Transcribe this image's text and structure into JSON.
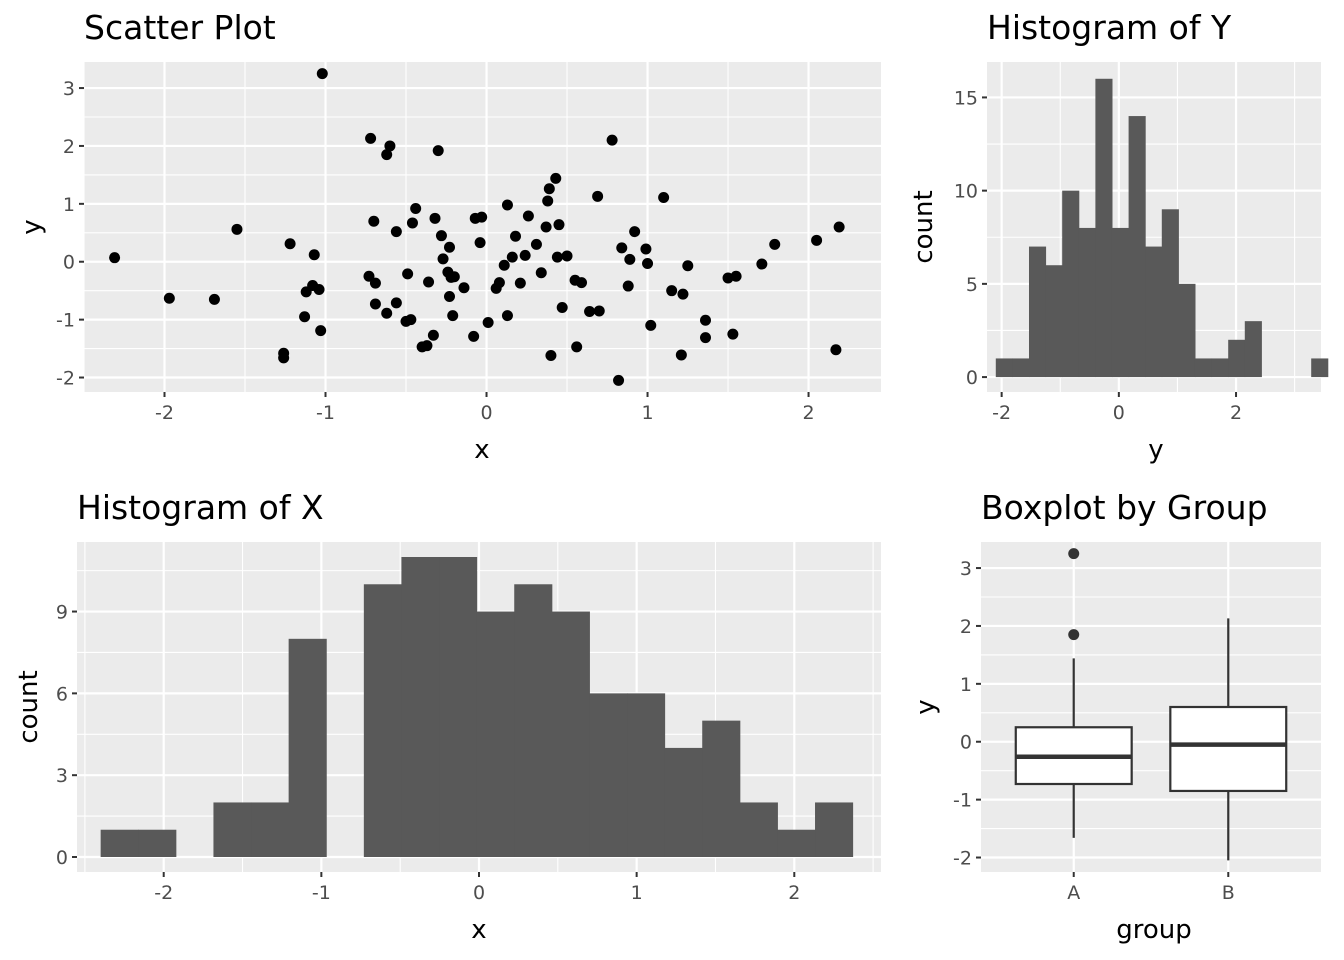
{
  "chart_data": [
    {
      "id": "scatter",
      "type": "scatter",
      "title": "Scatter Plot",
      "xlabel": "x",
      "ylabel": "y",
      "xlim": [
        -2.5,
        2.45
      ],
      "ylim": [
        -2.25,
        3.45
      ],
      "xticks": [
        -2,
        -1,
        0,
        1,
        2
      ],
      "yticks": [
        -2,
        -1,
        0,
        1,
        2,
        3
      ],
      "xticklabels": [
        "-2",
        "-1",
        "0",
        "1",
        "2"
      ],
      "yticklabels": [
        "-2",
        "-1",
        "0",
        "1",
        "2",
        "3"
      ],
      "grid": true,
      "point_color": "#000000",
      "points": [
        [
          -2.31,
          0.07
        ],
        [
          -1.97,
          -0.63
        ],
        [
          -1.69,
          -0.65
        ],
        [
          -1.55,
          0.56
        ],
        [
          -1.26,
          -1.58
        ],
        [
          -1.26,
          -1.66
        ],
        [
          -1.22,
          0.31
        ],
        [
          -1.13,
          -0.95
        ],
        [
          -1.12,
          -0.52
        ],
        [
          -1.08,
          -0.41
        ],
        [
          -1.07,
          0.12
        ],
        [
          -1.04,
          -0.48
        ],
        [
          -1.03,
          -1.19
        ],
        [
          -1.02,
          3.25
        ],
        [
          -0.73,
          -0.25
        ],
        [
          -0.72,
          2.13
        ],
        [
          -0.7,
          0.7
        ],
        [
          -0.69,
          -0.37
        ],
        [
          -0.69,
          -0.73
        ],
        [
          -0.62,
          1.85
        ],
        [
          -0.62,
          -0.89
        ],
        [
          -0.6,
          2.0
        ],
        [
          -0.56,
          0.52
        ],
        [
          -0.56,
          -0.71
        ],
        [
          -0.5,
          -1.03
        ],
        [
          -0.49,
          -0.21
        ],
        [
          -0.47,
          -1.0
        ],
        [
          -0.46,
          0.67
        ],
        [
          -0.44,
          0.92
        ],
        [
          -0.4,
          -1.47
        ],
        [
          -0.37,
          -1.45
        ],
        [
          -0.36,
          -0.35
        ],
        [
          -0.33,
          -1.27
        ],
        [
          -0.32,
          0.75
        ],
        [
          -0.3,
          1.92
        ],
        [
          -0.28,
          0.45
        ],
        [
          -0.27,
          0.05
        ],
        [
          -0.24,
          -0.18
        ],
        [
          -0.23,
          -0.6
        ],
        [
          -0.23,
          0.25
        ],
        [
          -0.22,
          -0.27
        ],
        [
          -0.21,
          -0.93
        ],
        [
          -0.2,
          -0.26
        ],
        [
          -0.14,
          -0.45
        ],
        [
          -0.08,
          -1.29
        ],
        [
          -0.07,
          0.75
        ],
        [
          -0.04,
          0.33
        ],
        [
          -0.03,
          0.77
        ],
        [
          0.01,
          -1.05
        ],
        [
          0.06,
          -0.46
        ],
        [
          0.08,
          -0.36
        ],
        [
          0.11,
          -0.06
        ],
        [
          0.13,
          0.98
        ],
        [
          0.13,
          -0.93
        ],
        [
          0.16,
          0.08
        ],
        [
          0.18,
          0.44
        ],
        [
          0.21,
          -0.37
        ],
        [
          0.24,
          0.11
        ],
        [
          0.26,
          0.79
        ],
        [
          0.31,
          0.3
        ],
        [
          0.34,
          -0.19
        ],
        [
          0.37,
          0.6
        ],
        [
          0.38,
          1.05
        ],
        [
          0.39,
          1.26
        ],
        [
          0.4,
          -1.62
        ],
        [
          0.43,
          1.44
        ],
        [
          0.44,
          0.08
        ],
        [
          0.45,
          0.64
        ],
        [
          0.47,
          -0.79
        ],
        [
          0.5,
          0.1
        ],
        [
          0.55,
          -0.32
        ],
        [
          0.56,
          -1.47
        ],
        [
          0.59,
          -0.36
        ],
        [
          0.64,
          -0.86
        ],
        [
          0.69,
          1.13
        ],
        [
          0.7,
          -0.85
        ],
        [
          0.78,
          2.1
        ],
        [
          0.82,
          -2.05
        ],
        [
          0.84,
          0.24
        ],
        [
          0.88,
          -0.42
        ],
        [
          0.89,
          0.04
        ],
        [
          0.92,
          0.52
        ],
        [
          0.99,
          0.22
        ],
        [
          1.0,
          -0.03
        ],
        [
          1.02,
          -1.1
        ],
        [
          1.1,
          1.11
        ],
        [
          1.15,
          -0.5
        ],
        [
          1.21,
          -1.61
        ],
        [
          1.22,
          -0.56
        ],
        [
          1.25,
          -0.07
        ],
        [
          1.36,
          -1.01
        ],
        [
          1.36,
          -1.31
        ],
        [
          1.5,
          -0.28
        ],
        [
          1.53,
          -1.25
        ],
        [
          1.55,
          -0.25
        ],
        [
          1.71,
          -0.04
        ],
        [
          1.79,
          0.3
        ],
        [
          2.05,
          0.37
        ],
        [
          2.17,
          -1.52
        ],
        [
          2.19,
          0.6
        ]
      ]
    },
    {
      "id": "hist-y",
      "type": "bar",
      "title": "Histogram of Y",
      "xlabel": "y",
      "ylabel": "count",
      "xlim": [
        -2.25,
        3.45
      ],
      "ylim": [
        -0.8,
        16.9
      ],
      "xticks": [
        -2,
        0,
        2
      ],
      "yticks": [
        0,
        5,
        10,
        15
      ],
      "xticklabels": [
        "-2",
        "0",
        "2"
      ],
      "yticklabels": [
        "0",
        "5",
        "10",
        "15"
      ],
      "grid": true,
      "bar_color": "#595959",
      "bin_start": -2.1,
      "bin_width": 0.2833,
      "counts": [
        1,
        1,
        7,
        6,
        10,
        8,
        16,
        8,
        14,
        7,
        9,
        5,
        1,
        1,
        2,
        3,
        0,
        0,
        0,
        1
      ]
    },
    {
      "id": "hist-x",
      "type": "bar",
      "title": "Histogram of X",
      "xlabel": "x",
      "ylabel": "count",
      "xlim": [
        -2.55,
        2.55
      ],
      "ylim": [
        -0.55,
        11.55
      ],
      "xticks": [
        -2,
        -1,
        0,
        1,
        2
      ],
      "yticks": [
        0,
        3,
        6,
        9
      ],
      "xticklabels": [
        "-2",
        "-1",
        "0",
        "1",
        "2"
      ],
      "yticklabels": [
        "0",
        "3",
        "6",
        "9"
      ],
      "grid": true,
      "bar_color": "#595959",
      "bin_start": -2.4,
      "bin_width": 0.2385,
      "counts": [
        1,
        1,
        0,
        2,
        2,
        8,
        0,
        10,
        11,
        11,
        9,
        10,
        9,
        6,
        6,
        4,
        5,
        2,
        1,
        2
      ]
    },
    {
      "id": "boxplot",
      "type": "boxplot",
      "title": "Boxplot by Group",
      "xlabel": "group",
      "ylabel": "y",
      "ylim": [
        -2.25,
        3.45
      ],
      "yticks": [
        -2,
        -1,
        0,
        1,
        2,
        3
      ],
      "yticklabels": [
        "-2",
        "-1",
        "0",
        "1",
        "2",
        "3"
      ],
      "categories": [
        "A",
        "B"
      ],
      "grid": true,
      "groups": [
        {
          "name": "A",
          "lower": -1.66,
          "q1": -0.73,
          "median": -0.26,
          "q3": 0.25,
          "upper": 1.44,
          "outliers": [
            3.25,
            1.85
          ]
        },
        {
          "name": "B",
          "lower": -2.05,
          "q1": -0.85,
          "median": -0.05,
          "q3": 0.6,
          "upper": 2.13,
          "outliers": []
        }
      ]
    }
  ]
}
